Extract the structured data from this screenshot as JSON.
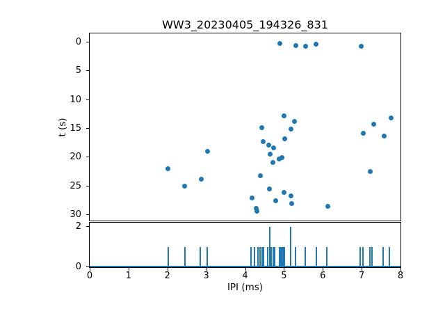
{
  "figure": {
    "title": "WW3_20230405_194326_831",
    "ylabel_top": "t (s)",
    "xlabel_bottom": "IPI (ms)"
  },
  "colors": {
    "accent": "#1f77b4",
    "axis": "#000000",
    "text": "#000000"
  },
  "chart_data": [
    {
      "type": "scatter",
      "title": "WW3_20230405_194326_831",
      "xlabel": "",
      "ylabel": "t (s)",
      "xlim": [
        0,
        8
      ],
      "ylim": [
        -1.45,
        31.1
      ],
      "y_inverted": true,
      "grid": false,
      "y_ticks": [
        0,
        5,
        10,
        15,
        20,
        25,
        30
      ],
      "x_tick_labels_shown": false,
      "points": [
        [
          4.9,
          0.3
        ],
        [
          5.3,
          0.65
        ],
        [
          5.56,
          0.75
        ],
        [
          5.82,
          0.45
        ],
        [
          6.98,
          0.75
        ],
        [
          5.01,
          12.85
        ],
        [
          7.75,
          13.3
        ],
        [
          5.27,
          13.85
        ],
        [
          7.31,
          14.3
        ],
        [
          4.43,
          14.9
        ],
        [
          5.19,
          15.15
        ],
        [
          7.05,
          15.9
        ],
        [
          7.58,
          16.35
        ],
        [
          5.02,
          16.9
        ],
        [
          4.46,
          17.4
        ],
        [
          4.6,
          18.0
        ],
        [
          4.74,
          18.45
        ],
        [
          3.04,
          19.1
        ],
        [
          4.64,
          19.55
        ],
        [
          4.95,
          20.1
        ],
        [
          4.88,
          20.45
        ],
        [
          4.72,
          21.05
        ],
        [
          2.02,
          22.1
        ],
        [
          7.22,
          22.6
        ],
        [
          4.39,
          23.25
        ],
        [
          2.88,
          23.9
        ],
        [
          2.45,
          25.1
        ],
        [
          4.63,
          25.65
        ],
        [
          5.01,
          26.15
        ],
        [
          5.19,
          26.75
        ],
        [
          4.18,
          27.15
        ],
        [
          4.78,
          27.65
        ],
        [
          5.2,
          28.15
        ],
        [
          6.13,
          28.65
        ],
        [
          4.28,
          29.0
        ],
        [
          4.3,
          29.5
        ]
      ]
    },
    {
      "type": "bar",
      "xlabel": "IPI (ms)",
      "ylabel": "",
      "xlim": [
        0,
        8
      ],
      "ylim": [
        0,
        2.2
      ],
      "grid": false,
      "x_ticks": [
        0,
        1,
        2,
        3,
        4,
        5,
        6,
        7,
        8
      ],
      "y_ticks": [
        0,
        2
      ],
      "bars": [
        {
          "x": 2.02,
          "h": 1
        },
        {
          "x": 2.45,
          "h": 1
        },
        {
          "x": 2.84,
          "h": 1
        },
        {
          "x": 3.02,
          "h": 1
        },
        {
          "x": 4.16,
          "h": 1
        },
        {
          "x": 4.25,
          "h": 1
        },
        {
          "x": 4.33,
          "h": 1
        },
        {
          "x": 4.38,
          "h": 1
        },
        {
          "x": 4.43,
          "h": 1
        },
        {
          "x": 4.47,
          "h": 1
        },
        {
          "x": 4.58,
          "h": 1
        },
        {
          "x": 4.63,
          "h": 2
        },
        {
          "x": 4.68,
          "h": 1
        },
        {
          "x": 4.72,
          "h": 1
        },
        {
          "x": 4.76,
          "h": 1
        },
        {
          "x": 4.89,
          "h": 1
        },
        {
          "x": 4.92,
          "h": 1
        },
        {
          "x": 4.95,
          "h": 1
        },
        {
          "x": 4.98,
          "h": 1
        },
        {
          "x": 5.02,
          "h": 1
        },
        {
          "x": 5.18,
          "h": 2
        },
        {
          "x": 5.29,
          "h": 1
        },
        {
          "x": 5.55,
          "h": 1
        },
        {
          "x": 5.83,
          "h": 1
        },
        {
          "x": 6.11,
          "h": 1
        },
        {
          "x": 6.97,
          "h": 1
        },
        {
          "x": 7.03,
          "h": 1
        },
        {
          "x": 7.21,
          "h": 1
        },
        {
          "x": 7.27,
          "h": 1
        },
        {
          "x": 7.55,
          "h": 1
        },
        {
          "x": 7.72,
          "h": 1
        }
      ]
    }
  ]
}
